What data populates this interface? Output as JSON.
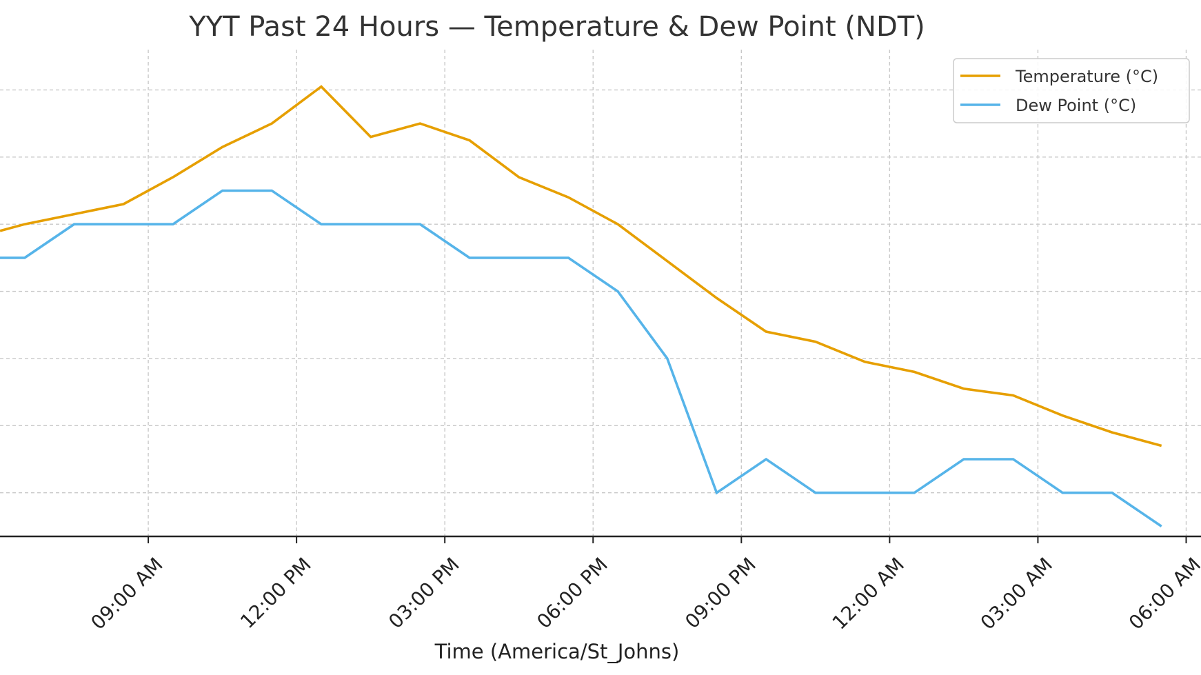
{
  "chart_data": {
    "type": "line",
    "title": "YYT Past 24 Hours — Temperature & Dew Point (NDT)",
    "xlabel": "Time (America/St_Johns)",
    "ylabel": "",
    "x_unit": "hours since 09:00 AM",
    "xlim": [
      -3.0,
      21.3
    ],
    "ylim": [
      5.35,
      12.6
    ],
    "grid": true,
    "legend_position": "upper-right",
    "x_ticks": [
      {
        "value": 0,
        "label": "09:00 AM"
      },
      {
        "value": 3,
        "label": "12:00 PM"
      },
      {
        "value": 6,
        "label": "03:00 PM"
      },
      {
        "value": 9,
        "label": "06:00 PM"
      },
      {
        "value": 12,
        "label": "09:00 PM"
      },
      {
        "value": 15,
        "label": "12:00 AM"
      },
      {
        "value": 18,
        "label": "03:00 AM"
      },
      {
        "value": 21,
        "label": "06:00 AM"
      }
    ],
    "y_gridlines": [
      6,
      7,
      8,
      9,
      10,
      11,
      12
    ],
    "series": [
      {
        "name": "Temperature (°C)",
        "color": "#E69F00",
        "points": [
          [
            -3.0,
            9.9
          ],
          [
            -2.5,
            10.0
          ],
          [
            -1.5,
            10.15
          ],
          [
            -0.5,
            10.3
          ],
          [
            0.5,
            10.7
          ],
          [
            1.5,
            11.15
          ],
          [
            2.5,
            11.5
          ],
          [
            3.5,
            12.05
          ],
          [
            4.5,
            11.3
          ],
          [
            5.5,
            11.5
          ],
          [
            6.5,
            11.25
          ],
          [
            7.5,
            10.7
          ],
          [
            8.5,
            10.4
          ],
          [
            9.5,
            10.0
          ],
          [
            10.5,
            9.45
          ],
          [
            11.5,
            8.9
          ],
          [
            12.5,
            8.4
          ],
          [
            13.5,
            8.25
          ],
          [
            14.5,
            7.95
          ],
          [
            15.5,
            7.8
          ],
          [
            16.5,
            7.55
          ],
          [
            17.5,
            7.45
          ],
          [
            18.5,
            7.15
          ],
          [
            19.5,
            6.9
          ],
          [
            20.5,
            6.7
          ]
        ]
      },
      {
        "name": "Dew Point (°C)",
        "color": "#56B4E9",
        "points": [
          [
            -3.0,
            9.5
          ],
          [
            -2.5,
            9.5
          ],
          [
            -1.5,
            10.0
          ],
          [
            -0.5,
            10.0
          ],
          [
            0.5,
            10.0
          ],
          [
            1.5,
            10.5
          ],
          [
            2.5,
            10.5
          ],
          [
            3.5,
            10.0
          ],
          [
            4.5,
            10.0
          ],
          [
            5.5,
            10.0
          ],
          [
            6.5,
            9.5
          ],
          [
            7.5,
            9.5
          ],
          [
            8.5,
            9.5
          ],
          [
            9.5,
            9.0
          ],
          [
            10.5,
            8.0
          ],
          [
            11.5,
            6.0
          ],
          [
            12.5,
            6.5
          ],
          [
            13.5,
            6.0
          ],
          [
            14.5,
            6.0
          ],
          [
            15.5,
            6.0
          ],
          [
            16.5,
            6.5
          ],
          [
            17.5,
            6.5
          ],
          [
            18.5,
            6.0
          ],
          [
            19.5,
            6.0
          ],
          [
            20.5,
            5.5
          ]
        ]
      }
    ]
  }
}
